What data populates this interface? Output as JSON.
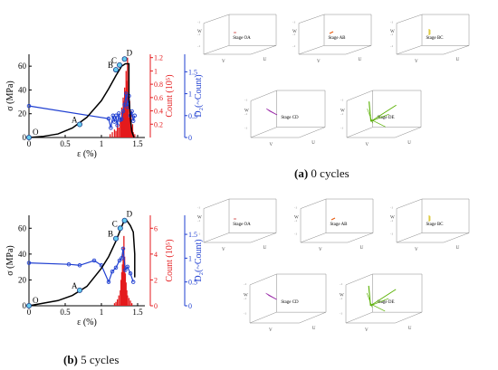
{
  "colors": {
    "stress": "#000000",
    "count": "#e41a1c",
    "fractal": "#1f3fd1",
    "marker": "#66ccee",
    "stage_gray": "#888888",
    "oa_dot": "#cc3333",
    "ab": "#e85c10",
    "bc": "#d4b800",
    "cd": "#9a2aa8",
    "de": "#58b000"
  },
  "captions": [
    {
      "letter": "(a)",
      "text": " 0 cycles"
    },
    {
      "letter": "(b)",
      "text": " 5 cycles"
    }
  ],
  "chart_data": [
    {
      "type": "line",
      "panel": "a",
      "xlabel": "ε (%)",
      "ylabel_left": "σ (MPa)",
      "ylabel_count": "Count (10⁵)",
      "ylabel_right": "D₂(~Count)",
      "xlim": [
        0,
        1.6
      ],
      "xticks": [
        "0",
        "0.5",
        "1",
        "1.5"
      ],
      "ylim_stress": [
        0,
        70
      ],
      "yticks_stress": [
        "0",
        "20",
        "40",
        "60"
      ],
      "ylim_count": [
        0,
        1.25
      ],
      "yticks_count": [
        "0.2",
        "0.4",
        "0.6",
        "0.8",
        "1",
        "1.2"
      ],
      "ylim_fractal": [
        0,
        1.9
      ],
      "yticks_fractal": [
        "0",
        "0.5",
        "1",
        "1.5"
      ],
      "stress_strain": {
        "x": [
          0,
          0.2,
          0.4,
          0.6,
          0.8,
          1.0,
          1.1,
          1.2,
          1.28,
          1.33,
          1.36,
          1.38,
          1.38,
          1.4,
          1.42,
          1.45
        ],
        "y": [
          0,
          1,
          3,
          8,
          17,
          31,
          41,
          52,
          60,
          62,
          62,
          62,
          33,
          16,
          5,
          0
        ]
      },
      "stage_points": [
        {
          "label": "O",
          "x": 0,
          "y": 0
        },
        {
          "label": "A",
          "x": 0.7,
          "y": 11
        },
        {
          "label": "B",
          "x": 1.2,
          "y": 57
        },
        {
          "label": "C",
          "x": 1.25,
          "y": 61
        },
        {
          "label": "D",
          "x": 1.32,
          "y": 66
        }
      ],
      "count_bars": {
        "x": [
          1.12,
          1.15,
          1.18,
          1.2,
          1.22,
          1.24,
          1.26,
          1.27,
          1.28,
          1.29,
          1.3,
          1.31,
          1.32,
          1.33,
          1.34,
          1.35,
          1.36,
          1.37,
          1.38,
          1.39,
          1.4,
          1.41,
          1.42,
          1.43,
          1.44,
          1.46
        ],
        "y": [
          0.05,
          0.08,
          0.12,
          0.1,
          0.2,
          0.15,
          0.3,
          0.28,
          0.45,
          0.4,
          0.6,
          0.55,
          0.75,
          0.7,
          1.0,
          0.85,
          1.2,
          0.5,
          0.3,
          0.55,
          0.25,
          0.4,
          0.15,
          0.2,
          0.08,
          0.05
        ]
      },
      "fractal_dimension": {
        "x": [
          0,
          1.1,
          1.13,
          1.16,
          1.18,
          1.2,
          1.22,
          1.24,
          1.26,
          1.28,
          1.3,
          1.32,
          1.34,
          1.36,
          1.38,
          1.4,
          1.42,
          1.44,
          1.46
        ],
        "y": [
          0.72,
          0.43,
          0.22,
          0.5,
          0.36,
          0.5,
          0.28,
          0.55,
          0.4,
          0.42,
          0.6,
          0.75,
          1.0,
          0.7,
          0.95,
          0.5,
          0.6,
          0.38,
          0.5
        ]
      }
    },
    {
      "type": "line",
      "panel": "b",
      "xlabel": "ε (%)",
      "ylabel_left": "σ (MPa)",
      "ylabel_count": "Count (10⁵)",
      "ylabel_right": "D₂(~Count)",
      "xlim": [
        0,
        1.6
      ],
      "xticks": [
        "0",
        "0.5",
        "1",
        "1.5"
      ],
      "ylim_stress": [
        0,
        70
      ],
      "yticks_stress": [
        "0",
        "20",
        "40",
        "60"
      ],
      "ylim_count": [
        0,
        7
      ],
      "yticks_count": [
        "0",
        "2",
        "4",
        "6"
      ],
      "ylim_fractal": [
        0,
        1.9
      ],
      "yticks_fractal": [
        "0",
        "0.5",
        "1",
        "1.5"
      ],
      "stress_strain": {
        "x": [
          0,
          0.2,
          0.4,
          0.6,
          0.8,
          1.0,
          1.1,
          1.2,
          1.25,
          1.3,
          1.35,
          1.4,
          1.44,
          1.46,
          1.46
        ],
        "y": [
          0,
          2,
          4,
          8,
          15,
          29,
          38,
          50,
          57,
          64,
          66,
          62,
          57,
          40,
          22
        ]
      },
      "stage_points": [
        {
          "label": "O",
          "x": 0,
          "y": 0
        },
        {
          "label": "A",
          "x": 0.7,
          "y": 12
        },
        {
          "label": "B",
          "x": 1.2,
          "y": 52
        },
        {
          "label": "C",
          "x": 1.26,
          "y": 60
        },
        {
          "label": "D",
          "x": 1.32,
          "y": 66
        }
      ],
      "count_bars": {
        "x": [
          1.18,
          1.2,
          1.22,
          1.24,
          1.26,
          1.27,
          1.28,
          1.29,
          1.3,
          1.31,
          1.32,
          1.33,
          1.34,
          1.35,
          1.36,
          1.38,
          1.4,
          1.42
        ],
        "y": [
          0.2,
          0.3,
          0.5,
          0.8,
          1.2,
          2.0,
          2.6,
          3.2,
          4.5,
          5.4,
          3.8,
          2.5,
          1.8,
          1.2,
          0.8,
          0.6,
          0.4,
          0.2
        ]
      },
      "fractal_dimension": {
        "x": [
          0,
          0.55,
          0.7,
          0.9,
          1.0,
          1.1,
          1.15,
          1.2,
          1.25,
          1.28,
          1.3,
          1.33,
          1.36,
          1.4,
          1.44
        ],
        "y": [
          0.9,
          0.87,
          0.85,
          0.95,
          0.85,
          0.5,
          0.72,
          0.8,
          0.95,
          1.0,
          1.2,
          0.75,
          0.82,
          0.68,
          0.5
        ]
      }
    }
  ],
  "stage_plots": {
    "row_a1": [
      {
        "label": "Stage OA",
        "trace": "oa_dot"
      },
      {
        "label": "Stage AB",
        "trace": "ab"
      },
      {
        "label": "Stage BC",
        "trace": "bc"
      }
    ],
    "row_a2": [
      {
        "label": "Stage CD",
        "trace": "cd"
      },
      {
        "label": "Stage DE",
        "trace": "de"
      }
    ],
    "row_b1": [
      {
        "label": "Stage OA",
        "trace": "oa_dot"
      },
      {
        "label": "Stage AB",
        "trace": "ab"
      },
      {
        "label": "Stage BC",
        "trace": "bc"
      }
    ],
    "row_b2": [
      {
        "label": "Stage CD",
        "trace": "cd"
      },
      {
        "label": "Stage DE",
        "trace": "de"
      }
    ],
    "axis_u": "U",
    "axis_v": "V",
    "axis_w": "W"
  }
}
